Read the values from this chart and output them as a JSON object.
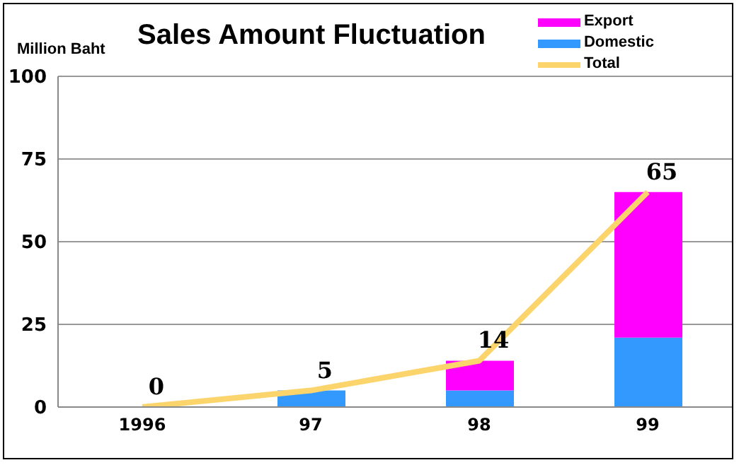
{
  "chart_data": {
    "type": "bar",
    "title": "Sales Amount Fluctuation",
    "ylabel": "Million Baht",
    "categories": [
      "1996",
      "97",
      "98",
      "99"
    ],
    "stacked": true,
    "series": [
      {
        "name": "Domestic",
        "color": "#3399ff",
        "values": [
          0,
          5,
          5,
          21
        ]
      },
      {
        "name": "Export",
        "color": "#ff00ff",
        "values": [
          0,
          0,
          9,
          44
        ]
      },
      {
        "name": "Total",
        "type": "line",
        "color": "#fcd46c",
        "values": [
          0,
          5,
          14,
          65
        ],
        "value_labels": [
          "0",
          "5",
          "14",
          "65"
        ]
      }
    ],
    "ylim": [
      0,
      100
    ],
    "yticks": [
      0,
      25,
      50,
      75,
      100
    ],
    "grid": "y",
    "legend": "top right",
    "marker": "none",
    "line_style": "solid"
  }
}
